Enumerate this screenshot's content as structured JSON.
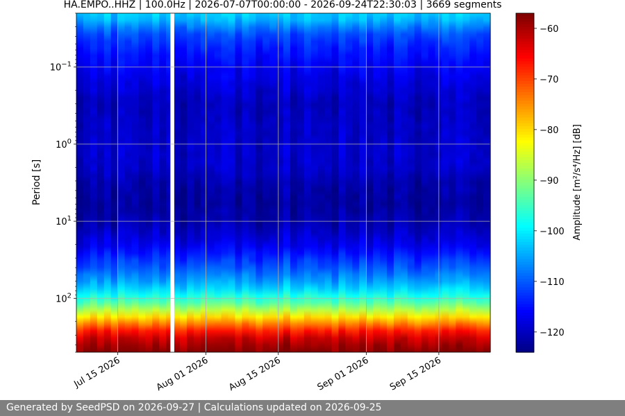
{
  "chart_data": {
    "type": "heatmap",
    "title": "HA.EMPO..HHZ | 100.0Hz | 2026-07-07T00:00:00 - 2026-09-24T22:30:03 | 3669 segments",
    "ylabel": "Period [s]",
    "yscale": "log",
    "yinverted": true,
    "ylim": [
      0.02,
      500
    ],
    "y_ticks": [
      {
        "value": 0.1,
        "base": "10",
        "exp": "−1"
      },
      {
        "value": 1,
        "base": "10",
        "exp": "0"
      },
      {
        "value": 10,
        "base": "10",
        "exp": "1"
      },
      {
        "value": 100,
        "base": "10",
        "exp": "2"
      }
    ],
    "xlim": [
      "2026-07-07",
      "2026-09-24T22:30:03"
    ],
    "x_ticks": [
      {
        "date": "2026-07-15",
        "label": "Jul 15 2026"
      },
      {
        "date": "2026-08-01",
        "label": "Aug 01 2026"
      },
      {
        "date": "2026-08-15",
        "label": "Aug 15 2026"
      },
      {
        "date": "2026-09-01",
        "label": "Sep 01 2026"
      },
      {
        "date": "2026-09-15",
        "label": "Sep 15 2026"
      }
    ],
    "grid": true,
    "colormap": "jet",
    "colorbar": {
      "label": "Amplitude [m²/s⁴/Hz] [dB]",
      "range": [
        -124,
        -57
      ],
      "ticks": [
        -60,
        -70,
        -80,
        -90,
        -100,
        -110,
        -120
      ],
      "tick_labels": [
        "−60",
        "−70",
        "−80",
        "−90",
        "−100",
        "−110",
        "−120"
      ]
    },
    "amplitude_profile": [
      {
        "period": 0.02,
        "db": -102
      },
      {
        "period": 0.025,
        "db": -104
      },
      {
        "period": 0.035,
        "db": -110
      },
      {
        "period": 0.06,
        "db": -114
      },
      {
        "period": 0.12,
        "db": -117
      },
      {
        "period": 0.3,
        "db": -120
      },
      {
        "period": 1,
        "db": -119
      },
      {
        "period": 2,
        "db": -119
      },
      {
        "period": 3,
        "db": -121
      },
      {
        "period": 6,
        "db": -122
      },
      {
        "period": 10,
        "db": -121
      },
      {
        "period": 20,
        "db": -117
      },
      {
        "period": 40,
        "db": -110
      },
      {
        "period": 70,
        "db": -103
      },
      {
        "period": 120,
        "db": -92
      },
      {
        "period": 160,
        "db": -83
      },
      {
        "period": 220,
        "db": -73
      },
      {
        "period": 300,
        "db": -63
      },
      {
        "period": 500,
        "db": -57
      }
    ],
    "data_gaps": [
      {
        "start": "2026-07-25T04:00:00",
        "end": "2026-07-25T22:00:00"
      }
    ]
  },
  "footer": {
    "text": "Generated by SeedPSD on 2026-09-27 | Calculations updated on 2026-09-25"
  }
}
